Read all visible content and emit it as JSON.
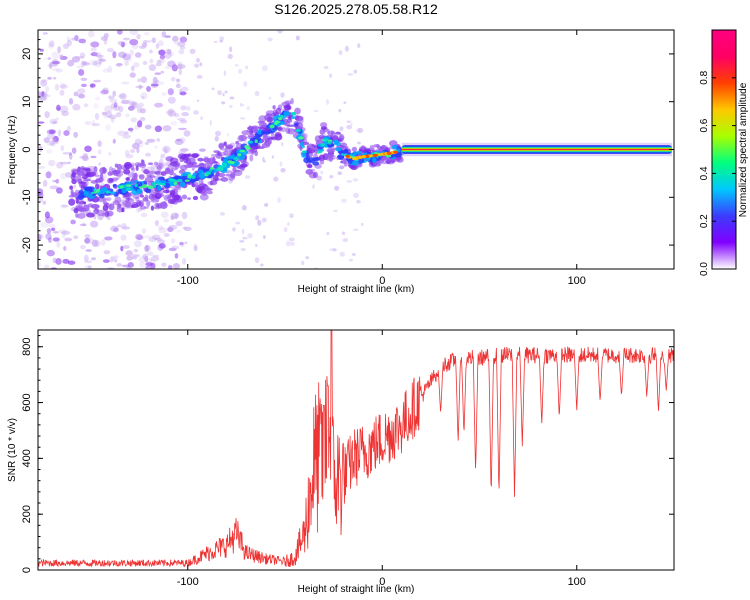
{
  "title": "S126.2025.278.05.58.R12",
  "chart_data": [
    {
      "type": "heatmap",
      "name": "spectrogram",
      "xlabel": "Height of straight line (km)",
      "ylabel": "Frequency (Hz)",
      "xlim": [
        -177,
        150
      ],
      "ylim": [
        -25,
        25
      ],
      "xticks": [
        -100,
        0,
        100
      ],
      "yticks": [
        -20,
        -10,
        0,
        10,
        20
      ],
      "colorbar": {
        "label": "Normalized spectral amplitude",
        "range": [
          0,
          1
        ],
        "ticks": [
          "0.0",
          "0.2",
          "0.4",
          "0.6",
          "0.8"
        ],
        "ramp": [
          "#ffffff",
          "#8000ff",
          "#3c3cff",
          "#00c8ff",
          "#00ff7f",
          "#a8ff00",
          "#ffc800",
          "#ff4000",
          "#ff0064",
          "#ff0080"
        ]
      },
      "ridge": {
        "x": [
          -150,
          -130,
          -110,
          -95,
          -85,
          -75,
          -68,
          -60,
          -52,
          -45,
          -40,
          -36,
          -33,
          -30,
          -25,
          -20,
          -15,
          -10,
          -5,
          0,
          5,
          10,
          20,
          150
        ],
        "y": [
          -9,
          -8,
          -7,
          -5.5,
          -4,
          -2,
          1,
          4,
          6.5,
          7.5,
          -1,
          -3,
          -1,
          2,
          1,
          -1,
          -2,
          -1.5,
          -1.3,
          -1,
          -0.7,
          -0.3,
          0,
          0
        ]
      },
      "noise_region_x": [
        -177,
        -100
      ]
    },
    {
      "type": "line",
      "name": "snr",
      "xlabel": "Height of straight line (km)",
      "ylabel": "SNR (10 * v/v)",
      "xlim": [
        -177,
        150
      ],
      "ylim": [
        0,
        860
      ],
      "xticks": [
        -100,
        0,
        100
      ],
      "yticks": [
        0,
        200,
        400,
        600,
        800
      ],
      "color": "#ee3333",
      "envelope": {
        "x": [
          -177,
          -100,
          -90,
          -80,
          -75,
          -70,
          -60,
          -50,
          -45,
          -40,
          -35,
          -30,
          -27,
          -25,
          -20,
          -15,
          -10,
          0,
          10,
          20,
          30,
          40,
          50,
          60,
          80,
          100,
          150
        ],
        "y": [
          25,
          25,
          60,
          90,
          130,
          60,
          40,
          30,
          45,
          130,
          380,
          420,
          500,
          320,
          330,
          400,
          420,
          470,
          520,
          620,
          730,
          760,
          760,
          770,
          770,
          770,
          770
        ]
      },
      "dips": [
        {
          "x": 30,
          "y": 560
        },
        {
          "x": 39,
          "y": 450
        },
        {
          "x": 42,
          "y": 480
        },
        {
          "x": 48,
          "y": 340
        },
        {
          "x": 56,
          "y": 255
        },
        {
          "x": 60,
          "y": 260
        },
        {
          "x": 68,
          "y": 255
        },
        {
          "x": 72,
          "y": 440
        },
        {
          "x": 82,
          "y": 520
        },
        {
          "x": 91,
          "y": 540
        },
        {
          "x": 100,
          "y": 570
        },
        {
          "x": 112,
          "y": 600
        },
        {
          "x": 123,
          "y": 620
        },
        {
          "x": 136,
          "y": 620
        },
        {
          "x": 142,
          "y": 560
        },
        {
          "x": 146,
          "y": 640
        }
      ],
      "peaks": [
        {
          "x": -26,
          "y": 860
        },
        {
          "x": -28,
          "y": 660
        },
        {
          "x": -30,
          "y": 590
        }
      ]
    }
  ]
}
